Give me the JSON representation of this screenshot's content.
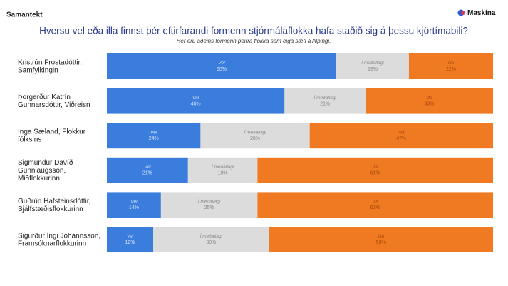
{
  "header": "Samantekt",
  "brand": "Maskína",
  "chart_data": {
    "type": "stacked-bar-100",
    "title": "Hversu vel eða illa finnst þér eftirfarandi formenn stjórmálaflokka hafa staðið sig á þessu kjörtímabili?",
    "subtitle": "Hér eru aðeins formenn þeirra flokka sem eiga sæti á Alþingi.",
    "categories": [
      [
        "Kristrún Frostadóttir,",
        "Samfylkingin"
      ],
      [
        "Þorgerður Katrín",
        "Gunnarsdóttir, Viðreisn"
      ],
      [
        "Inga Sæland, Flokkur",
        "fólksins"
      ],
      [
        "Sigmundur Davíð",
        "Gunnlaugsson,",
        "Miðflokkurinn"
      ],
      [
        "Guðrún Hafsteinsdóttir,",
        "Sjálfstæðisflokkurinn"
      ],
      [
        "Sigurður Ingi Jóhannsson,",
        "Framsóknarflokkurinn"
      ]
    ],
    "series": [
      {
        "name": "Vel",
        "color": "#3b7ddd",
        "label_color": "#d6e4fa",
        "values": [
          60,
          46,
          24,
          21,
          14,
          12
        ],
        "value_labels": [
          "60%",
          "46%",
          "24%",
          "21%",
          "14%",
          "12%"
        ]
      },
      {
        "name": "Í meðallagi",
        "color": "#dcdcdc",
        "label_color": "#8a8a8a",
        "values": [
          19,
          21,
          28,
          18,
          25,
          30
        ],
        "value_labels": [
          "19%",
          "21%",
          "28%",
          "18%",
          "25%",
          "30%"
        ]
      },
      {
        "name": "Illa",
        "color": "#f07a22",
        "label_color": "#a8470b",
        "values": [
          22,
          33,
          47,
          61,
          61,
          58
        ],
        "value_labels": [
          "22%",
          "33%",
          "47%",
          "61%",
          "61%",
          "58%"
        ]
      }
    ]
  }
}
